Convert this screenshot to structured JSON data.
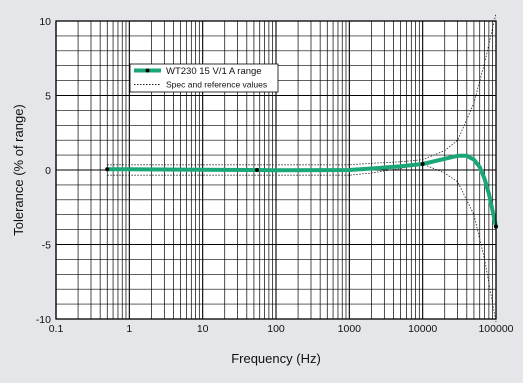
{
  "chart_data": {
    "type": "line",
    "title": "",
    "xlabel": "Frequency (Hz)",
    "ylabel": "Tolerance (% of range)",
    "xscale": "log",
    "xlim": [
      0.1,
      100000
    ],
    "ylim": [
      -10,
      10
    ],
    "x_ticks": [
      {
        "value": 0.1,
        "label": "0.1"
      },
      {
        "value": 1,
        "label": "1"
      },
      {
        "value": 10,
        "label": "10"
      },
      {
        "value": 100,
        "label": "100"
      },
      {
        "value": 1000,
        "label": "1000"
      },
      {
        "value": 10000,
        "label": "10000"
      },
      {
        "value": 100000,
        "label": "100000"
      }
    ],
    "y_ticks": [
      {
        "value": 10,
        "label": "10"
      },
      {
        "value": 5,
        "label": "5"
      },
      {
        "value": 0,
        "label": "0"
      },
      {
        "value": -5,
        "label": "-5"
      },
      {
        "value": -10,
        "label": "-10"
      }
    ],
    "grid": true,
    "legend_position": "top-left",
    "series": [
      {
        "name": "WT230 15 V/1 A range",
        "style": "thick-solid",
        "color": "#1aa775",
        "x": [
          0.5,
          1,
          5,
          10,
          50,
          100,
          500,
          1000,
          2000,
          5000,
          10000,
          20000,
          30000,
          40000,
          50000,
          60000,
          70000,
          80000,
          100000
        ],
        "y": [
          0.05,
          0.05,
          0.03,
          0.02,
          0.0,
          -0.02,
          -0.01,
          0.0,
          0.1,
          0.25,
          0.4,
          0.75,
          0.95,
          0.95,
          0.7,
          0.2,
          -0.6,
          -1.6,
          -3.8
        ],
        "markers_at": [
          0.5,
          55,
          10000,
          100000
        ]
      },
      {
        "name": "Spec and reference values",
        "style": "dotted",
        "color": "#222222",
        "upper": {
          "x": [
            0.5,
            10,
            100,
            1000,
            2000,
            5000,
            10000,
            20000,
            30000,
            50000,
            70000,
            100000
          ],
          "y": [
            0.35,
            0.35,
            0.35,
            0.35,
            0.45,
            0.55,
            0.7,
            1.3,
            2.0,
            4.5,
            7.2,
            10.5
          ]
        },
        "lower": {
          "x": [
            0.5,
            10,
            100,
            1000,
            2000,
            5000,
            10000,
            20000,
            30000,
            50000,
            70000,
            100000
          ],
          "y": [
            -0.35,
            -0.35,
            -0.35,
            -0.35,
            -0.2,
            0.1,
            0.4,
            -0.2,
            -0.8,
            -3.0,
            -6.0,
            -10.2
          ]
        }
      }
    ]
  }
}
